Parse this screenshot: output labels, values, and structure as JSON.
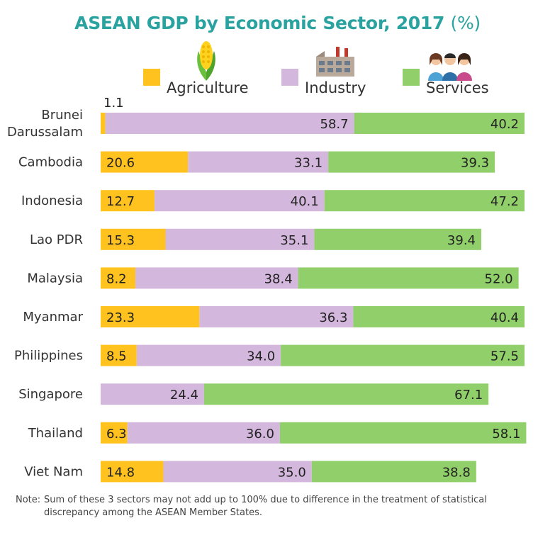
{
  "title": "ASEAN GDP by Economic Sector, 2017",
  "title_unit": "(%)",
  "legend": [
    {
      "label": "Agriculture",
      "icon": "corn-icon",
      "color": "#ffc21f"
    },
    {
      "label": "Industry",
      "icon": "factory-icon",
      "color": "#d4b7dd"
    },
    {
      "label": "Services",
      "icon": "people-icon",
      "color": "#90cf6a"
    }
  ],
  "note_label": "Note:",
  "note": "Sum of these 3 sectors may not add up to 100% due to difference in the treatment of statistical discrepancy among the ASEAN Member States.",
  "chart_data": {
    "type": "bar",
    "orientation": "horizontal",
    "stacked": true,
    "categories": [
      "Brunei Darussalam",
      "Cambodia",
      "Indonesia",
      "Lao PDR",
      "Malaysia",
      "Myanmar",
      "Philippines",
      "Singapore",
      "Thailand",
      "Viet Nam"
    ],
    "category_lines": [
      [
        "Brunei",
        "Darussalam"
      ],
      [
        "Cambodia"
      ],
      [
        "Indonesia"
      ],
      [
        "Lao PDR"
      ],
      [
        "Malaysia"
      ],
      [
        "Myanmar"
      ],
      [
        "Philippines"
      ],
      [
        "Singapore"
      ],
      [
        "Thailand"
      ],
      [
        "Viet Nam"
      ]
    ],
    "series": [
      {
        "name": "Agriculture",
        "color": "#ffc21f",
        "values": [
          1.1,
          20.6,
          12.7,
          15.3,
          8.2,
          23.3,
          8.5,
          null,
          6.3,
          14.8
        ],
        "labels": [
          "1.1",
          "20.6",
          "12.7",
          "15.3",
          "8.2",
          "23.3",
          "8.5",
          "",
          "6.3",
          "14.8"
        ]
      },
      {
        "name": "Industry",
        "color": "#d4b7dd",
        "values": [
          58.7,
          33.1,
          40.1,
          35.1,
          38.4,
          36.3,
          34.0,
          24.4,
          36.0,
          35.0
        ],
        "labels": [
          "58.7",
          "33.1",
          "40.1",
          "35.1",
          "38.4",
          "36.3",
          "34.0",
          "24.4",
          "36.0",
          "35.0"
        ]
      },
      {
        "name": "Services",
        "color": "#90cf6a",
        "values": [
          40.2,
          39.3,
          47.2,
          39.4,
          52.0,
          40.4,
          57.5,
          67.1,
          58.1,
          38.8
        ],
        "labels": [
          "40.2",
          "39.3",
          "47.2",
          "39.4",
          "52.0",
          "40.4",
          "57.5",
          "67.1",
          "58.1",
          "38.8"
        ]
      }
    ],
    "xlim": [
      0,
      100
    ],
    "grid": false,
    "legend_position": "top"
  }
}
